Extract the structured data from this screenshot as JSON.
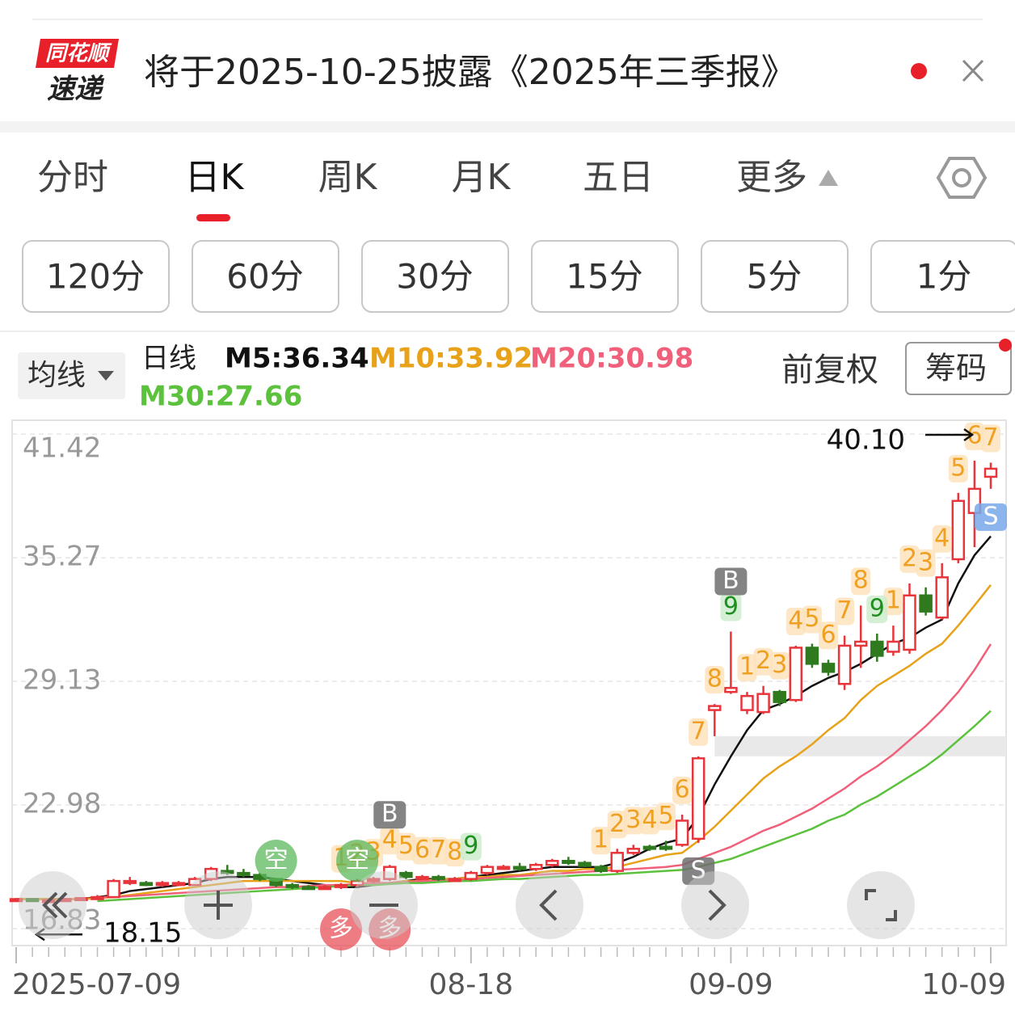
{
  "header": {
    "logo_top": "同花顺",
    "logo_bottom": "速递",
    "notice": "将于2025-10-25披露《2025年三季报》"
  },
  "tabs": [
    "分时",
    "日K",
    "周K",
    "月K",
    "五日",
    "更多"
  ],
  "periods": [
    "120分",
    "60分",
    "30分",
    "15分",
    "5分",
    "1分"
  ],
  "toolbar": {
    "ma_menu": "均线",
    "line_label": "日线",
    "adjust": "前复权",
    "chips": "筹码"
  },
  "chart_data": {
    "type": "candlestick",
    "categories": [
      "2025-07-09",
      null,
      null,
      null,
      null,
      null,
      null,
      null,
      null,
      null,
      null,
      null,
      null,
      null,
      null,
      null,
      null,
      null,
      null,
      null,
      null,
      null,
      null,
      null,
      null,
      null,
      null,
      null,
      "08-18",
      null,
      null,
      null,
      null,
      null,
      null,
      null,
      null,
      null,
      null,
      null,
      null,
      null,
      null,
      null,
      "09-09",
      null,
      null,
      null,
      null,
      null,
      null,
      null,
      null,
      null,
      null,
      null,
      null,
      null,
      null,
      null,
      "10-09"
    ],
    "open": [
      18.3,
      18.3,
      18.2,
      18.25,
      18.3,
      18.35,
      18.4,
      19.1,
      19.1,
      19.0,
      19.1,
      19.0,
      19.3,
      19.7,
      19.6,
      19.5,
      19.3,
      19.0,
      18.9,
      18.85,
      18.9,
      19.0,
      19.2,
      19.3,
      19.6,
      19.4,
      19.4,
      19.3,
      19.3,
      19.6,
      19.9,
      19.9,
      19.8,
      20.0,
      20.2,
      20.1,
      19.9,
      19.7,
      20.6,
      20.9,
      20.9,
      21.0,
      21.3,
      27.7,
      28.6,
      27.7,
      27.6,
      28.6,
      28.2,
      30.8,
      30.0,
      29.0,
      30.9,
      31.1,
      30.6,
      30.7,
      33.4,
      32.3,
      35.2,
      37.5,
      39.3
    ],
    "high": [
      18.35,
      18.3,
      18.3,
      18.35,
      18.4,
      18.5,
      19.3,
      19.4,
      19.2,
      19.2,
      19.2,
      19.4,
      19.9,
      20.0,
      19.8,
      19.6,
      19.3,
      19.1,
      19.0,
      19.0,
      19.1,
      19.3,
      19.4,
      20.0,
      19.7,
      19.5,
      19.5,
      19.4,
      19.7,
      20.0,
      20.0,
      20.1,
      20.1,
      20.3,
      20.4,
      20.2,
      20.0,
      20.8,
      21.0,
      21.0,
      21.2,
      22.5,
      25.4,
      28.0,
      31.6,
      28.6,
      28.9,
      28.7,
      30.9,
      31.0,
      30.2,
      31.4,
      32.9,
      31.5,
      31.9,
      34.0,
      33.8,
      35.0,
      38.5,
      40.1,
      40.0
    ],
    "low": [
      18.25,
      18.15,
      18.15,
      18.2,
      18.25,
      18.3,
      18.4,
      19.0,
      18.95,
      18.9,
      19.0,
      19.0,
      19.2,
      19.5,
      19.4,
      19.2,
      18.9,
      18.8,
      18.8,
      18.8,
      18.8,
      18.9,
      19.1,
      19.2,
      19.3,
      19.3,
      19.2,
      19.2,
      19.2,
      19.5,
      19.8,
      19.7,
      19.7,
      19.9,
      20.0,
      19.9,
      19.6,
      19.6,
      20.5,
      20.7,
      20.7,
      20.9,
      21.1,
      26.4,
      28.5,
      27.5,
      27.5,
      27.9,
      28.1,
      29.8,
      29.4,
      28.7,
      29.8,
      30.1,
      30.4,
      30.5,
      32.4,
      32.2,
      35.0,
      35.8,
      38.7
    ],
    "close": [
      18.3,
      18.2,
      18.25,
      18.3,
      18.35,
      18.4,
      19.2,
      19.2,
      19.0,
      19.1,
      19.1,
      19.3,
      19.8,
      19.6,
      19.5,
      19.3,
      19.0,
      18.9,
      18.85,
      18.9,
      19.0,
      19.2,
      19.3,
      19.9,
      19.4,
      19.4,
      19.3,
      19.3,
      19.6,
      19.9,
      19.9,
      19.8,
      20.0,
      20.2,
      20.1,
      19.95,
      19.7,
      20.6,
      20.8,
      20.8,
      20.8,
      22.2,
      25.3,
      27.9,
      28.8,
      28.4,
      28.5,
      28.1,
      30.8,
      30.0,
      29.6,
      30.9,
      31.1,
      30.4,
      31.1,
      33.4,
      32.6,
      34.3,
      38.1,
      38.7,
      39.7
    ],
    "up_color": "#e8353b",
    "down_color": "#2f7a1e",
    "ma_series": [
      {
        "name": "M5:36.34",
        "color": "#111111",
        "values": [
          18.3,
          18.3,
          18.3,
          18.3,
          18.3,
          18.4,
          18.5,
          18.7,
          18.8,
          18.9,
          19.0,
          19.1,
          19.3,
          19.4,
          19.4,
          19.4,
          19.3,
          19.2,
          19.1,
          19.0,
          18.9,
          18.9,
          19.0,
          19.1,
          19.2,
          19.3,
          19.3,
          19.3,
          19.4,
          19.5,
          19.6,
          19.7,
          19.8,
          19.9,
          19.9,
          19.9,
          19.9,
          20.1,
          20.4,
          20.8,
          21.1,
          21.3,
          22.4,
          24.0,
          25.4,
          26.7,
          27.7,
          28.0,
          28.4,
          28.9,
          29.3,
          29.6,
          30.0,
          30.5,
          31.0,
          31.3,
          31.8,
          32.2,
          34.0,
          35.4,
          36.34
        ]
      },
      {
        "name": "M10:33.92",
        "color": "#e8a21a",
        "values": [
          18.3,
          18.3,
          18.3,
          18.3,
          18.3,
          18.35,
          18.4,
          18.5,
          18.6,
          18.7,
          18.8,
          18.9,
          19.0,
          19.1,
          19.2,
          19.2,
          19.2,
          19.2,
          19.2,
          19.2,
          19.2,
          19.1,
          19.1,
          19.1,
          19.2,
          19.2,
          19.3,
          19.3,
          19.4,
          19.4,
          19.5,
          19.5,
          19.6,
          19.7,
          19.7,
          19.8,
          19.8,
          19.9,
          20.1,
          20.3,
          20.5,
          20.6,
          21.2,
          21.9,
          22.7,
          23.5,
          24.3,
          24.9,
          25.4,
          26.0,
          26.7,
          27.3,
          28.2,
          28.9,
          29.4,
          29.9,
          30.5,
          31.0,
          31.9,
          32.9,
          33.92
        ]
      },
      {
        "name": "M20:30.98",
        "color": "#f0607a",
        "values": [
          null,
          null,
          null,
          null,
          null,
          18.4,
          18.4,
          18.45,
          18.5,
          18.55,
          18.6,
          18.65,
          18.7,
          18.75,
          18.8,
          18.85,
          18.9,
          18.9,
          18.95,
          19.0,
          19.0,
          19.05,
          19.1,
          19.1,
          19.15,
          19.2,
          19.2,
          19.25,
          19.3,
          19.35,
          19.4,
          19.45,
          19.5,
          19.55,
          19.6,
          19.65,
          19.7,
          19.75,
          19.8,
          19.85,
          19.9,
          20.0,
          20.3,
          20.6,
          20.9,
          21.3,
          21.7,
          22.0,
          22.4,
          22.8,
          23.3,
          23.8,
          24.4,
          24.9,
          25.5,
          26.2,
          26.9,
          27.7,
          28.6,
          29.7,
          30.98
        ]
      },
      {
        "name": "M30:27.66",
        "color": "#5cc23e",
        "values": [
          null,
          null,
          null,
          null,
          null,
          18.2,
          18.25,
          18.3,
          18.35,
          18.4,
          18.45,
          18.5,
          18.55,
          18.6,
          18.65,
          18.7,
          18.75,
          18.8,
          18.85,
          18.9,
          18.95,
          19.0,
          19.0,
          19.05,
          19.1,
          19.1,
          19.15,
          19.2,
          19.2,
          19.25,
          19.3,
          19.3,
          19.35,
          19.4,
          19.45,
          19.5,
          19.5,
          19.55,
          19.6,
          19.65,
          19.7,
          19.75,
          19.9,
          20.1,
          20.3,
          20.6,
          20.9,
          21.2,
          21.5,
          21.8,
          22.2,
          22.5,
          23.0,
          23.4,
          23.9,
          24.4,
          24.9,
          25.5,
          26.2,
          26.9,
          27.66
        ]
      }
    ],
    "td_labels": [
      null,
      null,
      null,
      null,
      null,
      null,
      null,
      null,
      null,
      null,
      null,
      null,
      null,
      null,
      null,
      null,
      null,
      null,
      null,
      null,
      "1",
      "2",
      "3",
      "4",
      "5",
      "6",
      "7",
      "8",
      null,
      null,
      null,
      null,
      null,
      null,
      null,
      null,
      "1",
      "2",
      "3",
      "4",
      "5",
      "6",
      "7",
      "8",
      null,
      "1",
      "2",
      "3",
      "4",
      "5",
      "6",
      "7",
      "8",
      null,
      "1",
      "2",
      "3",
      "4",
      "5",
      "6",
      "7"
    ],
    "td_done_labels": [
      null,
      null,
      null,
      null,
      null,
      null,
      null,
      null,
      null,
      null,
      null,
      null,
      null,
      null,
      null,
      null,
      null,
      null,
      null,
      null,
      null,
      null,
      null,
      null,
      null,
      null,
      null,
      null,
      "9",
      null,
      null,
      null,
      null,
      null,
      null,
      null,
      null,
      null,
      null,
      null,
      null,
      null,
      null,
      null,
      "9",
      null,
      null,
      null,
      null,
      null,
      null,
      null,
      null,
      "9",
      null,
      null,
      null,
      null,
      null,
      null,
      null
    ],
    "buy_labels": [
      null,
      null,
      null,
      null,
      null,
      null,
      null,
      null,
      null,
      null,
      null,
      null,
      null,
      null,
      null,
      null,
      null,
      null,
      null,
      null,
      null,
      null,
      null,
      "B",
      null,
      null,
      null,
      null,
      null,
      null,
      null,
      null,
      null,
      null,
      null,
      null,
      null,
      null,
      null,
      null,
      null,
      null,
      null,
      null,
      "B",
      null,
      null,
      null,
      null,
      null,
      null,
      null,
      null,
      null,
      null,
      null,
      null,
      null,
      null,
      null,
      null
    ],
    "sell_labels": [
      null,
      null,
      null,
      null,
      null,
      null,
      null,
      null,
      null,
      null,
      null,
      null,
      null,
      null,
      null,
      null,
      null,
      null,
      null,
      null,
      null,
      null,
      null,
      null,
      null,
      null,
      null,
      null,
      null,
      null,
      null,
      null,
      null,
      null,
      null,
      null,
      null,
      null,
      null,
      null,
      null,
      null,
      "S",
      null,
      null,
      null,
      null,
      null,
      null,
      null,
      null,
      null,
      null,
      null,
      null,
      null,
      null,
      null,
      null,
      null,
      "S"
    ],
    "kong_labels": [
      null,
      null,
      null,
      null,
      null,
      null,
      null,
      null,
      null,
      null,
      null,
      null,
      null,
      null,
      null,
      null,
      "空",
      null,
      null,
      null,
      null,
      "空",
      null,
      null,
      null,
      null,
      null,
      null,
      null,
      null,
      null,
      null,
      null,
      null,
      null,
      null,
      null,
      null,
      null,
      null,
      null,
      null,
      null,
      null,
      null,
      null,
      null,
      null,
      null,
      null,
      null,
      null,
      null,
      null,
      null,
      null,
      null,
      null,
      null,
      null,
      null
    ],
    "duo_labels": [
      null,
      null,
      null,
      null,
      null,
      null,
      null,
      null,
      null,
      null,
      null,
      null,
      null,
      null,
      null,
      null,
      null,
      null,
      null,
      null,
      "多",
      null,
      null,
      "多",
      null,
      null,
      null,
      null,
      null,
      null,
      null,
      null,
      null,
      null,
      null,
      null,
      null,
      null,
      null,
      null,
      null,
      null,
      null,
      null,
      null,
      null,
      null,
      null,
      null,
      null,
      null,
      null,
      null,
      null,
      null,
      null,
      null,
      null,
      null,
      null,
      null
    ],
    "high_mark": {
      "value": 40.1,
      "label": "40.10"
    },
    "low_mark": 18.15,
    "ylim": [
      15.99,
      42.11
    ],
    "yticks": [
      41.42,
      35.27,
      29.13,
      22.98,
      16.83
    ],
    "grid": true
  }
}
